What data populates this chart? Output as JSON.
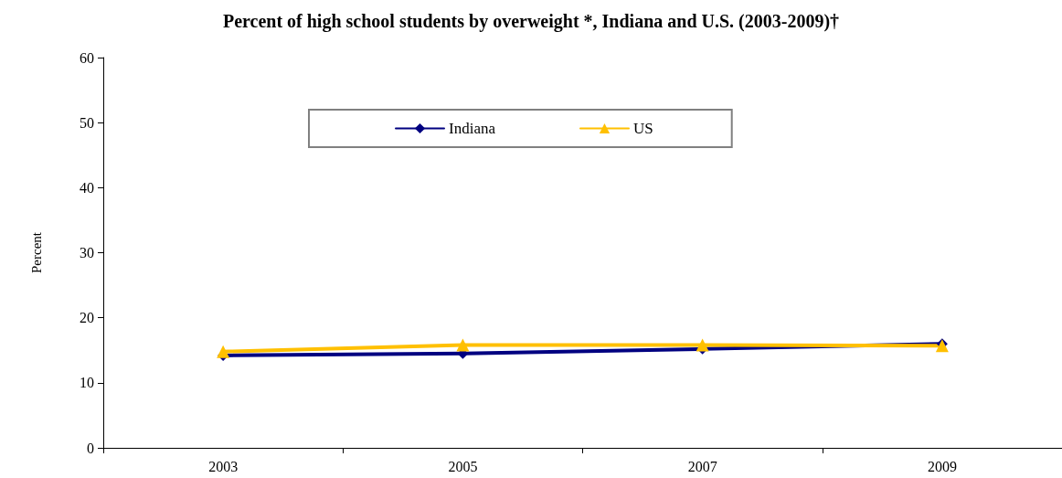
{
  "chart_data": {
    "type": "line",
    "title": "Percent of high school students by overweight *, Indiana and U.S. (2003-2009)†",
    "ylabel": "Percent",
    "categories": [
      "2003",
      "2005",
      "2007",
      "2009"
    ],
    "series": [
      {
        "name": "Indiana",
        "color": "#000080",
        "marker": "diamond",
        "values": [
          14.2,
          14.5,
          15.2,
          16.0
        ]
      },
      {
        "name": "US",
        "color": "#ffc000",
        "marker": "triangle",
        "values": [
          14.8,
          15.8,
          15.8,
          15.7
        ]
      }
    ],
    "ylim": [
      0,
      60
    ],
    "yticks": [
      0,
      10,
      20,
      30,
      40,
      50,
      60
    ],
    "grid": false,
    "legend": "top"
  }
}
